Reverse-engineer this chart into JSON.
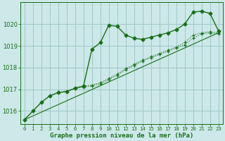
{
  "title": "Graphe pression niveau de la mer (hPa)",
  "bg_color": "#cce8e8",
  "grid_color": "#a0c8c8",
  "line_color": "#1a6e1a",
  "xlim": [
    -0.5,
    23.5
  ],
  "ylim": [
    1015.4,
    1021.0
  ],
  "yticks": [
    1016,
    1017,
    1018,
    1019,
    1020
  ],
  "xticks": [
    0,
    1,
    2,
    3,
    4,
    5,
    6,
    7,
    8,
    9,
    10,
    11,
    12,
    13,
    14,
    15,
    16,
    17,
    18,
    19,
    20,
    21,
    22,
    23
  ],
  "series1": {
    "x": [
      0,
      1,
      2,
      3,
      4,
      5,
      6,
      7,
      8,
      9,
      10,
      11,
      12,
      13,
      14,
      15,
      16,
      17,
      18,
      19,
      20,
      21,
      22,
      23
    ],
    "y": [
      1015.6,
      1016.0,
      1016.4,
      1016.7,
      1016.85,
      1016.9,
      1017.05,
      1017.15,
      1018.85,
      1019.15,
      1019.95,
      1019.9,
      1019.5,
      1019.35,
      1019.3,
      1019.4,
      1019.5,
      1019.6,
      1019.75,
      1020.0,
      1020.55,
      1020.6,
      1020.5,
      1019.7
    ]
  },
  "series2": {
    "x": [
      0,
      1,
      2,
      3,
      4,
      5,
      6,
      7,
      8,
      9,
      10,
      11,
      12,
      13,
      14,
      15,
      16,
      17,
      18,
      19,
      20,
      21,
      22,
      23
    ],
    "y": [
      1015.6,
      1016.0,
      1016.4,
      1016.7,
      1016.85,
      1016.9,
      1017.05,
      1017.15,
      1017.2,
      1017.3,
      1017.5,
      1017.7,
      1017.95,
      1018.15,
      1018.35,
      1018.5,
      1018.65,
      1018.8,
      1018.95,
      1019.15,
      1019.5,
      1019.6,
      1019.65,
      1019.6
    ]
  },
  "series3": {
    "x": [
      3,
      4,
      5,
      6,
      7,
      8,
      9,
      10,
      11,
      12,
      13,
      14,
      15,
      16,
      17,
      18,
      19,
      20,
      21,
      22,
      23
    ],
    "y": [
      1016.7,
      1016.85,
      1016.9,
      1017.05,
      1017.1,
      1017.15,
      1017.25,
      1017.45,
      1017.65,
      1017.9,
      1018.1,
      1018.3,
      1018.45,
      1018.6,
      1018.75,
      1018.9,
      1019.05,
      1019.35,
      1019.55,
      1019.6,
      1019.55
    ]
  },
  "series4": {
    "x": [
      0,
      23
    ],
    "y": [
      1015.6,
      1019.6
    ]
  }
}
